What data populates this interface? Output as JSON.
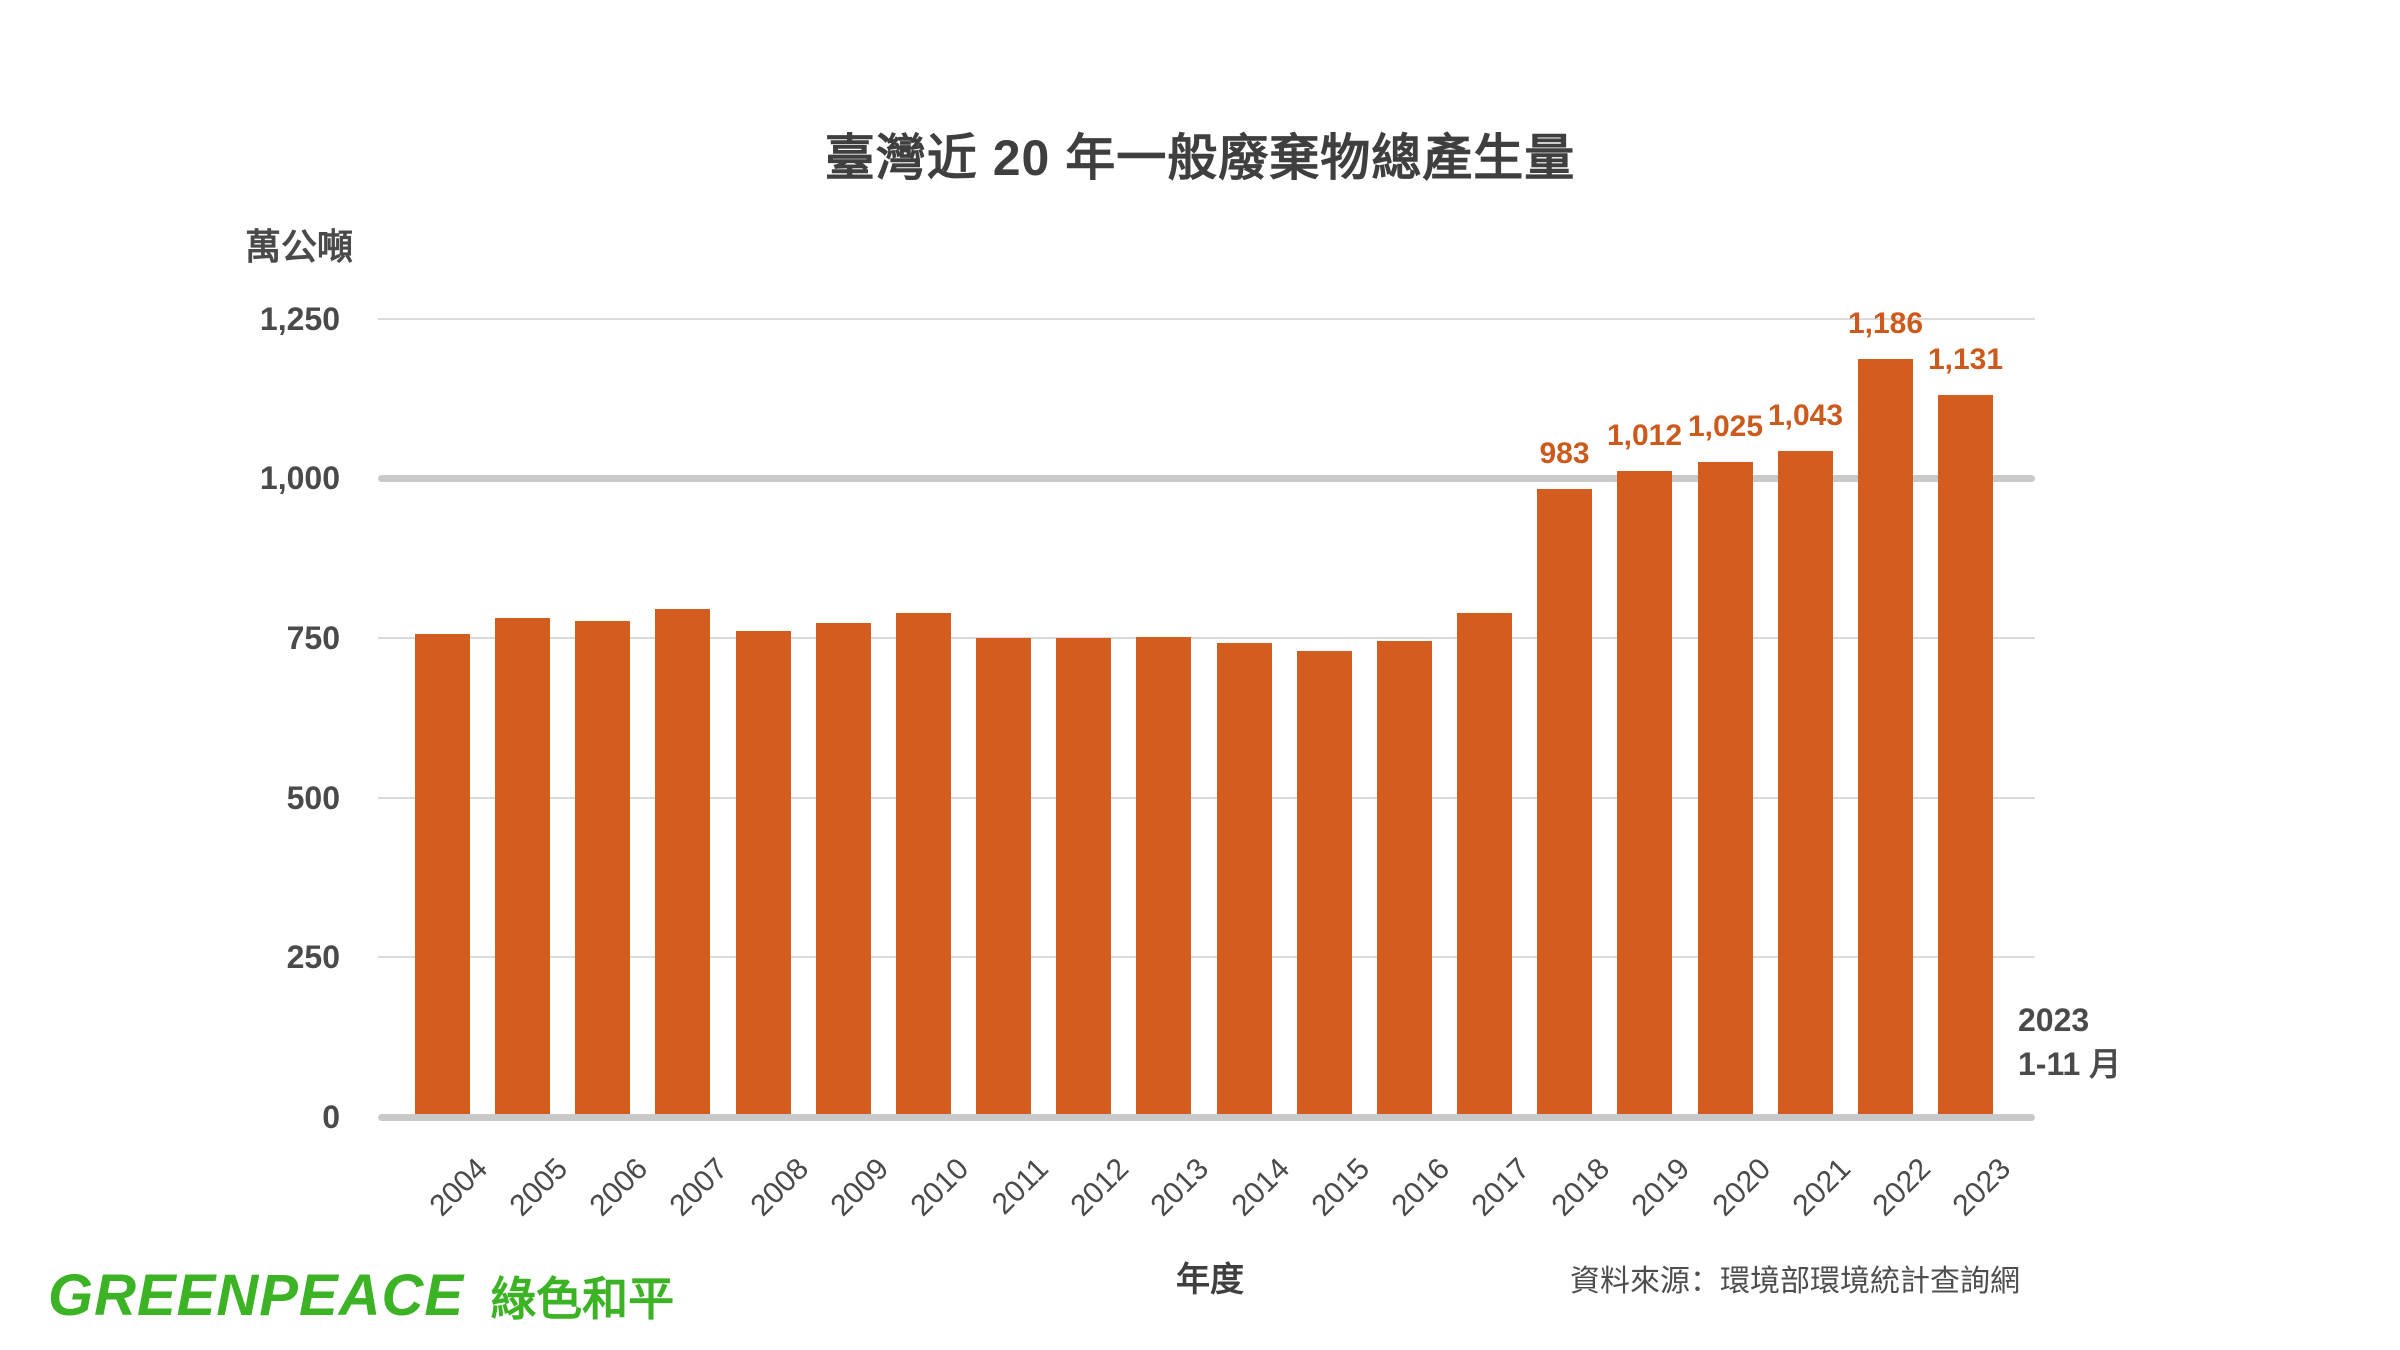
{
  "title": "臺灣近 20 年一般廢棄物總產生量",
  "y_unit_label": "萬公噸",
  "x_axis_title": "年度",
  "source_note": "資料來源：環境部環境統計查詢網",
  "last_bar_annotation": {
    "line1": "2023",
    "line2": "1-11 月"
  },
  "logo": {
    "en_text": "GREENPEACE",
    "zh_text": "綠色和平"
  },
  "colors": {
    "background": "#FFFFFF",
    "bar": "#D25D1E",
    "value_label": "#CB5A1C",
    "title_text": "#3F3F3F",
    "axis_text": "#4A4A4A",
    "gridline": "#DBDBDB",
    "gridline_emphasis": "#C9C9C9",
    "source_text": "#4D4D4D",
    "logo_green": "#3BB324"
  },
  "chart_data": {
    "type": "bar",
    "title": "臺灣近 20 年一般廢棄物總產生量",
    "ylabel": "萬公噸",
    "xlabel": "年度",
    "ylim": [
      0,
      1250
    ],
    "yticks": [
      0,
      250,
      500,
      750,
      1000,
      1250
    ],
    "ytick_labels": [
      "0",
      "250",
      "500",
      "750",
      "1,000",
      "1,250"
    ],
    "emphasized_gridlines": [
      0,
      1000
    ],
    "grid": true,
    "legend": false,
    "categories": [
      "2004",
      "2005",
      "2006",
      "2007",
      "2008",
      "2009",
      "2010",
      "2011",
      "2012",
      "2013",
      "2014",
      "2015",
      "2016",
      "2017",
      "2018",
      "2019",
      "2020",
      "2021",
      "2022",
      "2023"
    ],
    "values": [
      756,
      781,
      777,
      796,
      761,
      773,
      789,
      750,
      750,
      751,
      742,
      730,
      745,
      789,
      983,
      1012,
      1025,
      1043,
      1186,
      1131
    ],
    "value_labels": [
      "",
      "",
      "",
      "",
      "",
      "",
      "",
      "",
      "",
      "",
      "",
      "",
      "",
      "",
      "983",
      "1,012",
      "1,025",
      "1,043",
      "1,186",
      "1,131"
    ]
  }
}
